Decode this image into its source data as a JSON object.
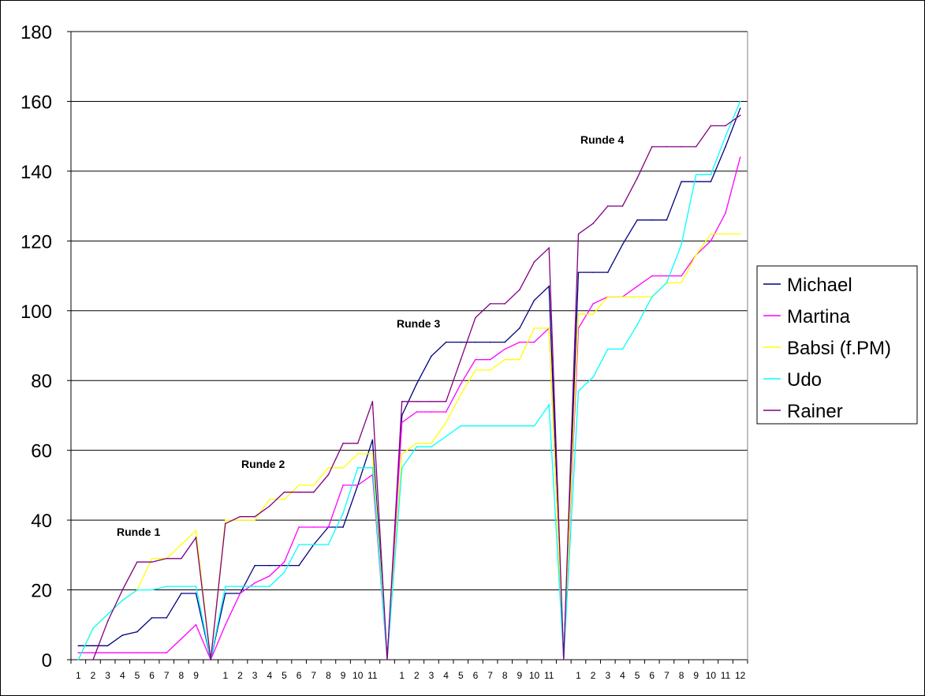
{
  "chart_data": {
    "type": "line",
    "title": "",
    "xlabel": "",
    "ylabel": "",
    "ylim": [
      0,
      180
    ],
    "yticks": [
      0,
      20,
      40,
      60,
      80,
      100,
      120,
      140,
      160,
      180
    ],
    "grid": "horizontal",
    "legend_position": "right",
    "categories": [
      "1",
      "2",
      "3",
      "4",
      "5",
      "6",
      "7",
      "8",
      "9",
      "",
      "1",
      "2",
      "3",
      "4",
      "5",
      "6",
      "7",
      "8",
      "9",
      "10",
      "11",
      "",
      "1",
      "2",
      "3",
      "4",
      "5",
      "6",
      "7",
      "8",
      "9",
      "10",
      "11",
      "",
      "1",
      "2",
      "3",
      "4",
      "5",
      "6",
      "7",
      "8",
      "9",
      "10",
      "11",
      "12"
    ],
    "annotations": [
      "Runde 1",
      "Runde 2",
      "Runde 3",
      "Runde 4"
    ],
    "series": [
      {
        "name": "Michael",
        "color": "#000080",
        "values": [
          4,
          4,
          4,
          7,
          8,
          12,
          12,
          19,
          19,
          0,
          19,
          19,
          27,
          27,
          27,
          27,
          33,
          38,
          38,
          50,
          63,
          0,
          70,
          79,
          87,
          91,
          91,
          91,
          91,
          91,
          95,
          103,
          107,
          0,
          111,
          111,
          111,
          119,
          126,
          126,
          126,
          137,
          137,
          137,
          147,
          158
        ]
      },
      {
        "name": "Martina",
        "color": "#ff00ff",
        "values": [
          2,
          2,
          2,
          2,
          2,
          2,
          2,
          6,
          10,
          0,
          10,
          19,
          22,
          24,
          28,
          38,
          38,
          38,
          50,
          50,
          53,
          0,
          68,
          71,
          71,
          71,
          79,
          86,
          86,
          89,
          91,
          91,
          95,
          0,
          95,
          102,
          104,
          104,
          107,
          110,
          110,
          110,
          116,
          120,
          128,
          144
        ]
      },
      {
        "name": "Babsi (f.PM)",
        "color": "#ffff00",
        "values": [
          0,
          9,
          13,
          17,
          20,
          29,
          29,
          33,
          37,
          0,
          40,
          40,
          40,
          46,
          46,
          50,
          50,
          55,
          55,
          59,
          59,
          0,
          59,
          62,
          62,
          68,
          76,
          83,
          83,
          86,
          86,
          95,
          95,
          0,
          99,
          99,
          104,
          104,
          104,
          104,
          108,
          108,
          116,
          122,
          122,
          122
        ]
      },
      {
        "name": "Udo",
        "color": "#00ffff",
        "values": [
          0,
          9,
          13,
          17,
          20,
          20,
          21,
          21,
          21,
          0,
          21,
          21,
          21,
          21,
          25,
          33,
          33,
          33,
          42,
          55,
          55,
          0,
          55,
          61,
          61,
          64,
          67,
          67,
          67,
          67,
          67,
          67,
          73,
          0,
          77,
          81,
          89,
          89,
          96,
          104,
          108,
          119,
          139,
          139,
          150,
          160
        ]
      },
      {
        "name": "Rainer",
        "color": "#800080",
        "values": [
          null,
          0,
          11,
          20,
          28,
          28,
          29,
          29,
          35,
          0,
          39,
          41,
          41,
          44,
          48,
          48,
          48,
          53,
          62,
          62,
          74,
          0,
          74,
          74,
          74,
          74,
          86,
          98,
          102,
          102,
          106,
          114,
          118,
          0,
          122,
          125,
          130,
          130,
          138,
          147,
          147,
          147,
          147,
          153,
          153,
          156
        ]
      }
    ]
  }
}
